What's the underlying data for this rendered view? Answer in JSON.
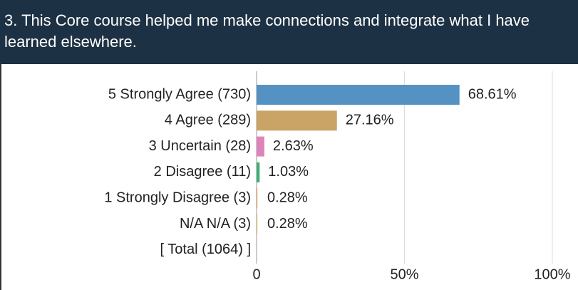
{
  "chart_data": {
    "type": "bar",
    "orientation": "horizontal",
    "title": "3. This Core course helped me make connections and integrate what I have learned elsewhere.",
    "categories": [
      "5 Strongly Agree (730)",
      "4 Agree (289)",
      "3 Uncertain (28)",
      "2 Disagree (11)",
      "1 Strongly Disagree (3)",
      "N/A N/A (3)",
      "[ Total (1064) ]"
    ],
    "values": [
      68.61,
      27.16,
      2.63,
      1.03,
      0.28,
      0.28,
      null
    ],
    "value_labels": [
      "68.61%",
      "27.16%",
      "2.63%",
      "1.03%",
      "0.28%",
      "0.28%",
      null
    ],
    "colors": [
      "#5592c4",
      "#c9a466",
      "#dd85bb",
      "#3fae74",
      "#e0a050",
      "#d8c070",
      "#999999"
    ],
    "xlim": [
      0,
      100
    ],
    "xticks": [
      0,
      {
        "value": 50,
        "label": "50%"
      },
      {
        "value": 100,
        "label": "100%"
      }
    ],
    "grid": true
  }
}
